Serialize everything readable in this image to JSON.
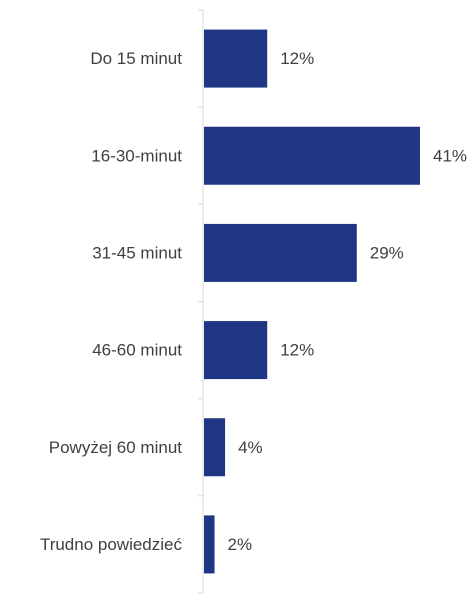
{
  "chart_data": {
    "type": "bar",
    "orientation": "horizontal",
    "categories": [
      "Do 15 minut",
      "16-30-minut",
      "31-45 minut",
      "46-60 minut",
      "Powyżej 60 minut",
      "Trudno powiedzieć"
    ],
    "values": [
      12,
      41,
      29,
      12,
      4,
      2
    ],
    "value_labels": [
      "12%",
      "41%",
      "29%",
      "12%",
      "4%",
      "2%"
    ],
    "xlim": [
      0,
      41
    ],
    "title": "",
    "xlabel": "",
    "ylabel": "",
    "grid": false,
    "legend": "none",
    "bar_color": "#1f3685",
    "axis_color": "#d9d9d9",
    "text_color": "#404040"
  }
}
